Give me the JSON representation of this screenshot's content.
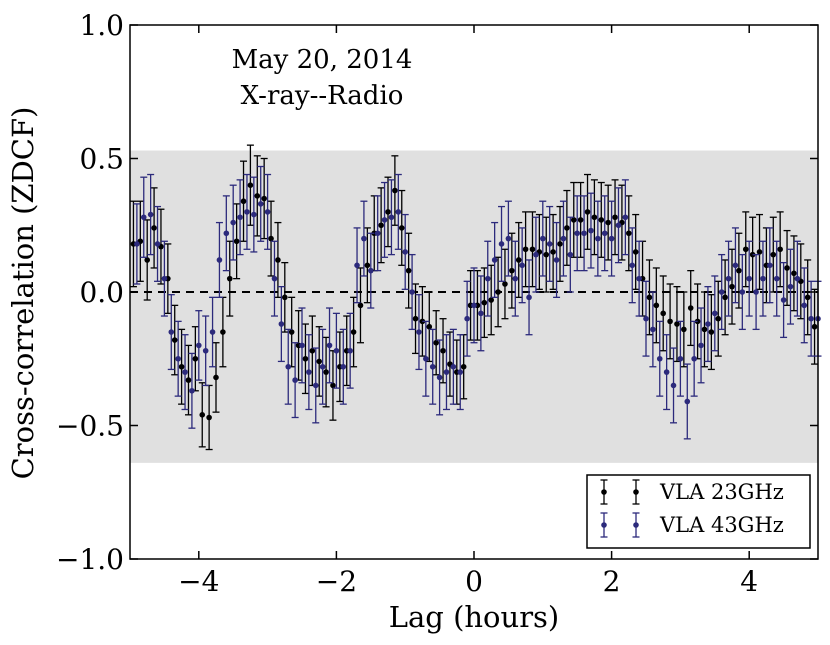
{
  "chart_data": {
    "type": "scatter",
    "title": "",
    "annotations": [
      "May 20, 2014",
      "X-ray--Radio"
    ],
    "xlabel": "Lag (hours)",
    "ylabel": "Cross-correlation (ZDCF)",
    "xlim": [
      -5,
      5
    ],
    "ylim": [
      -1.0,
      1.0
    ],
    "x_ticks": [
      -4,
      -2,
      0,
      2,
      4
    ],
    "x_tick_labels": [
      "−4",
      "−2",
      "0",
      "2",
      "4"
    ],
    "y_ticks": [
      -1.0,
      -0.5,
      0.0,
      0.5,
      1.0
    ],
    "y_tick_labels": [
      "−1.0",
      "−0.5",
      "0.0",
      "0.5",
      "1.0"
    ],
    "reference_line": {
      "y": 0.0,
      "style": "dashed"
    },
    "shaded_band": {
      "y_low": -0.64,
      "y_high": 0.53,
      "color": "#e0e0e0"
    },
    "legend": {
      "location": "bottom-right",
      "entries": [
        "VLA 23GHz",
        "VLA 43GHz"
      ]
    },
    "series": [
      {
        "name": "VLA 23GHz",
        "color": "#000000",
        "x": [
          -4.95,
          -4.85,
          -4.75,
          -4.65,
          -4.55,
          -4.45,
          -4.35,
          -4.25,
          -4.15,
          -4.05,
          -3.95,
          -3.85,
          -3.75,
          -3.65,
          -3.55,
          -3.45,
          -3.35,
          -3.25,
          -3.15,
          -3.05,
          -2.95,
          -2.85,
          -2.75,
          -2.65,
          -2.55,
          -2.45,
          -2.35,
          -2.25,
          -2.15,
          -2.05,
          -1.95,
          -1.85,
          -1.75,
          -1.65,
          -1.55,
          -1.45,
          -1.35,
          -1.25,
          -1.15,
          -1.05,
          -0.95,
          -0.85,
          -0.75,
          -0.65,
          -0.55,
          -0.45,
          -0.35,
          -0.25,
          -0.15,
          -0.05,
          0.05,
          0.15,
          0.25,
          0.35,
          0.45,
          0.55,
          0.65,
          0.75,
          0.85,
          0.95,
          1.05,
          1.15,
          1.25,
          1.35,
          1.45,
          1.55,
          1.65,
          1.75,
          1.85,
          1.95,
          2.05,
          2.15,
          2.25,
          2.35,
          2.45,
          2.55,
          2.65,
          2.75,
          2.85,
          2.95,
          3.05,
          3.15,
          3.25,
          3.35,
          3.45,
          3.55,
          3.65,
          3.75,
          3.85,
          3.95,
          4.05,
          4.15,
          4.25,
          4.35,
          4.45,
          4.55,
          4.65,
          4.75,
          4.85,
          4.95
        ],
        "y": [
          0.18,
          0.19,
          0.12,
          0.24,
          0.17,
          0.05,
          -0.18,
          -0.28,
          -0.33,
          -0.25,
          -0.46,
          -0.47,
          -0.32,
          -0.15,
          0.05,
          0.19,
          0.34,
          0.4,
          0.36,
          0.35,
          0.2,
          0.12,
          -0.02,
          -0.15,
          -0.2,
          -0.25,
          -0.22,
          -0.26,
          -0.3,
          -0.35,
          -0.28,
          -0.22,
          -0.15,
          -0.05,
          0.1,
          0.22,
          0.25,
          0.3,
          0.38,
          0.24,
          0.08,
          -0.1,
          -0.11,
          -0.13,
          -0.19,
          -0.22,
          -0.27,
          -0.3,
          -0.28,
          -0.05,
          -0.05,
          -0.04,
          -0.03,
          0.0,
          0.03,
          0.08,
          0.12,
          0.16,
          0.16,
          0.15,
          0.14,
          0.15,
          0.18,
          0.24,
          0.27,
          0.27,
          0.3,
          0.28,
          0.27,
          0.26,
          0.28,
          0.26,
          0.22,
          0.15,
          0.05,
          -0.02,
          -0.05,
          -0.08,
          -0.11,
          -0.12,
          -0.14,
          -0.06,
          -0.11,
          -0.14,
          -0.15,
          -0.1,
          -0.02,
          0.02,
          0.08,
          0.16,
          0.14,
          0.15,
          0.1,
          0.14,
          0.16,
          0.09,
          0.07,
          0.04,
          -0.02,
          -0.13
        ],
        "err": [
          0.16,
          0.15,
          0.15,
          0.15,
          0.14,
          0.13,
          0.13,
          0.14,
          0.13,
          0.12,
          0.12,
          0.12,
          0.13,
          0.13,
          0.14,
          0.14,
          0.15,
          0.15,
          0.15,
          0.15,
          0.14,
          0.14,
          0.13,
          0.13,
          0.13,
          0.13,
          0.13,
          0.13,
          0.13,
          0.13,
          0.13,
          0.13,
          0.13,
          0.14,
          0.14,
          0.14,
          0.14,
          0.13,
          0.13,
          0.14,
          0.14,
          0.13,
          0.13,
          0.13,
          0.12,
          0.12,
          0.12,
          0.12,
          0.12,
          0.13,
          0.13,
          0.13,
          0.13,
          0.13,
          0.13,
          0.14,
          0.14,
          0.14,
          0.14,
          0.14,
          0.14,
          0.14,
          0.14,
          0.14,
          0.14,
          0.14,
          0.14,
          0.14,
          0.14,
          0.14,
          0.14,
          0.14,
          0.14,
          0.14,
          0.14,
          0.14,
          0.14,
          0.14,
          0.14,
          0.14,
          0.14,
          0.14,
          0.14,
          0.14,
          0.14,
          0.14,
          0.14,
          0.14,
          0.14,
          0.14,
          0.14,
          0.14,
          0.14,
          0.14,
          0.14,
          0.14,
          0.14,
          0.14,
          0.14,
          0.14
        ]
      },
      {
        "name": "VLA 43GHz",
        "color": "#2c2a7c",
        "x": [
          -4.9,
          -4.8,
          -4.7,
          -4.6,
          -4.5,
          -4.4,
          -4.3,
          -4.2,
          -4.1,
          -4.0,
          -3.9,
          -3.8,
          -3.7,
          -3.6,
          -3.5,
          -3.4,
          -3.3,
          -3.2,
          -3.1,
          -3.0,
          -2.9,
          -2.8,
          -2.7,
          -2.6,
          -2.5,
          -2.4,
          -2.3,
          -2.2,
          -2.1,
          -2.0,
          -1.9,
          -1.8,
          -1.7,
          -1.6,
          -1.5,
          -1.4,
          -1.3,
          -1.2,
          -1.1,
          -1.0,
          -0.9,
          -0.8,
          -0.7,
          -0.6,
          -0.5,
          -0.4,
          -0.3,
          -0.2,
          -0.1,
          0.0,
          0.1,
          0.2,
          0.3,
          0.4,
          0.5,
          0.6,
          0.7,
          0.8,
          0.9,
          1.0,
          1.1,
          1.2,
          1.3,
          1.4,
          1.5,
          1.6,
          1.7,
          1.8,
          1.9,
          2.0,
          2.1,
          2.2,
          2.3,
          2.4,
          2.5,
          2.6,
          2.7,
          2.8,
          2.9,
          3.0,
          3.1,
          3.2,
          3.3,
          3.4,
          3.5,
          3.6,
          3.7,
          3.8,
          3.9,
          4.0,
          4.1,
          4.2,
          4.3,
          4.4,
          4.5,
          4.6,
          4.7,
          4.8,
          4.9,
          5.0
        ],
        "y": [
          0.18,
          0.28,
          0.29,
          0.18,
          0.05,
          -0.15,
          -0.25,
          -0.3,
          -0.37,
          -0.2,
          -0.22,
          -0.15,
          0.12,
          0.22,
          0.26,
          0.28,
          0.3,
          0.29,
          0.33,
          0.3,
          0.05,
          -0.12,
          -0.28,
          -0.33,
          -0.2,
          -0.3,
          -0.35,
          -0.28,
          -0.2,
          -0.22,
          -0.28,
          -0.22,
          0.1,
          0.2,
          0.08,
          0.22,
          0.27,
          0.28,
          0.3,
          0.15,
          0.0,
          -0.15,
          -0.25,
          -0.28,
          -0.32,
          -0.3,
          -0.28,
          -0.3,
          -0.1,
          -0.05,
          -0.08,
          0.05,
          0.12,
          0.18,
          0.2,
          0.05,
          0.1,
          -0.02,
          0.14,
          0.2,
          0.18,
          0.12,
          0.2,
          0.14,
          0.22,
          0.22,
          0.23,
          0.2,
          0.22,
          0.2,
          0.25,
          0.28,
          0.1,
          0.05,
          -0.1,
          -0.14,
          -0.25,
          -0.3,
          -0.35,
          -0.25,
          -0.41,
          -0.25,
          -0.2,
          -0.12,
          -0.08,
          0.0,
          0.05,
          0.1,
          0.0,
          0.05,
          0.0,
          0.05,
          0.1,
          0.05,
          -0.03,
          0.02,
          0.05,
          -0.05,
          -0.1,
          -0.1
        ],
        "err": [
          0.15,
          0.15,
          0.15,
          0.14,
          0.14,
          0.14,
          0.14,
          0.14,
          0.14,
          0.13,
          0.13,
          0.13,
          0.14,
          0.14,
          0.14,
          0.14,
          0.14,
          0.14,
          0.14,
          0.14,
          0.14,
          0.14,
          0.14,
          0.14,
          0.14,
          0.14,
          0.14,
          0.14,
          0.14,
          0.14,
          0.14,
          0.14,
          0.14,
          0.14,
          0.14,
          0.14,
          0.14,
          0.14,
          0.14,
          0.14,
          0.14,
          0.14,
          0.14,
          0.14,
          0.14,
          0.14,
          0.14,
          0.14,
          0.14,
          0.14,
          0.14,
          0.14,
          0.14,
          0.14,
          0.14,
          0.14,
          0.14,
          0.14,
          0.14,
          0.14,
          0.14,
          0.14,
          0.14,
          0.14,
          0.14,
          0.14,
          0.14,
          0.14,
          0.14,
          0.14,
          0.14,
          0.14,
          0.14,
          0.14,
          0.14,
          0.14,
          0.14,
          0.14,
          0.14,
          0.14,
          0.14,
          0.14,
          0.14,
          0.14,
          0.14,
          0.14,
          0.14,
          0.14,
          0.14,
          0.14,
          0.14,
          0.14,
          0.14,
          0.14,
          0.14,
          0.14,
          0.14,
          0.14,
          0.14,
          0.14
        ]
      }
    ]
  }
}
